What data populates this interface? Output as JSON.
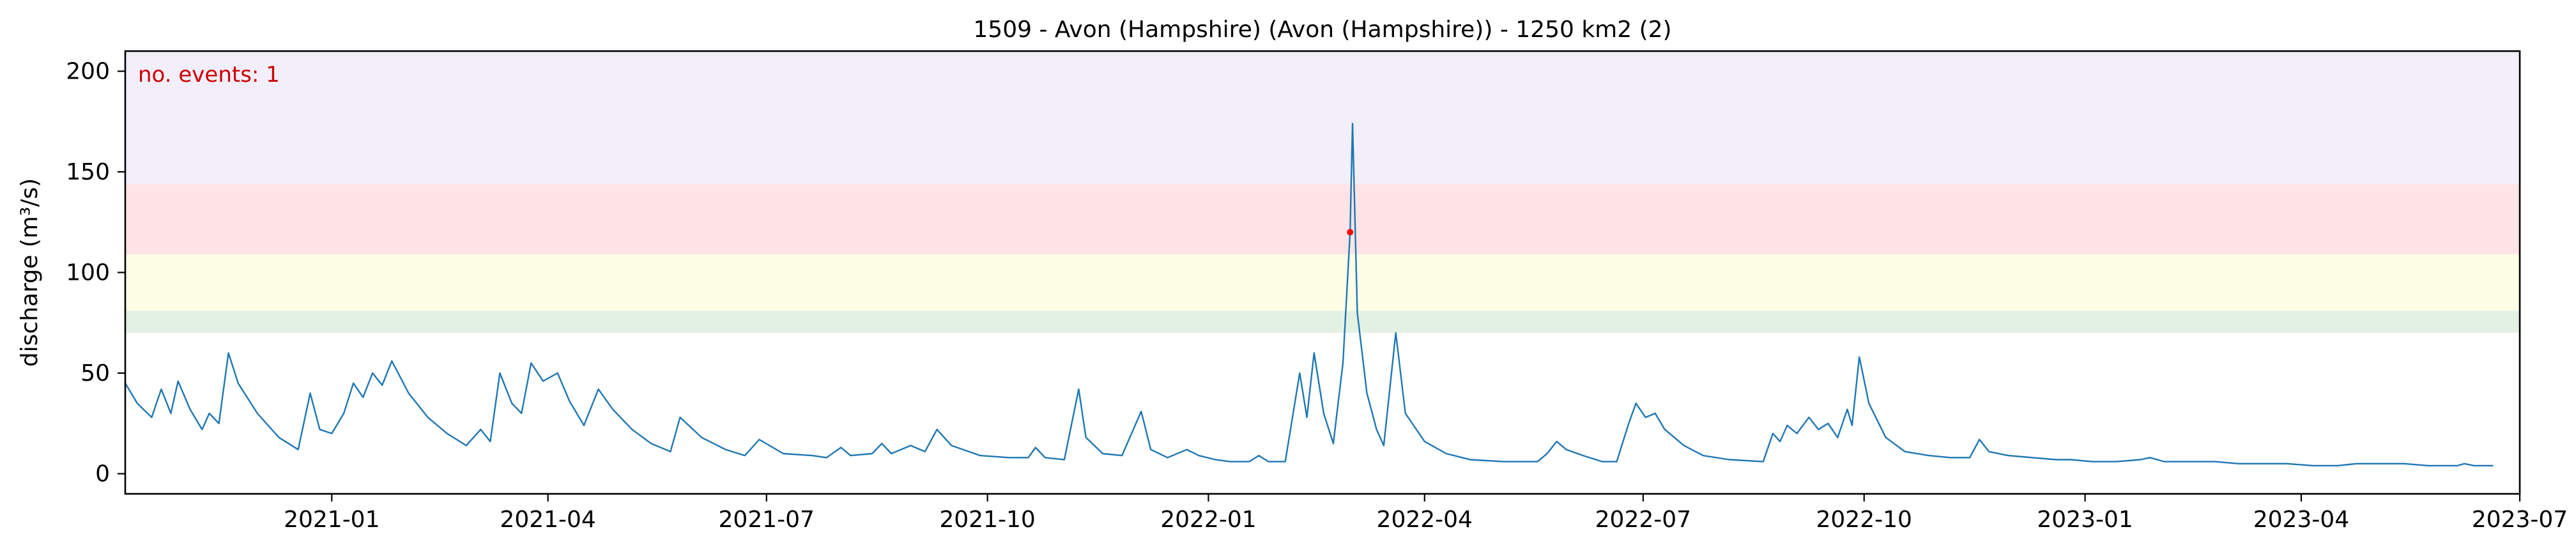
{
  "chart_data": {
    "type": "line",
    "title": "1509 - Avon (Hampshire) (Avon (Hampshire)) - 1250 km2 (2)",
    "xlabel": "",
    "ylabel": "discharge (m³/s)",
    "xlim": [
      "2020-10-07",
      "2023-07-01"
    ],
    "ylim": [
      -10,
      210
    ],
    "x_ticks": [
      "2021-01",
      "2021-04",
      "2021-07",
      "2021-10",
      "2022-01",
      "2022-04",
      "2022-07",
      "2022-10",
      "2023-01",
      "2023-04",
      "2023-07"
    ],
    "y_ticks": [
      0,
      50,
      100,
      150,
      200
    ],
    "grid": false,
    "annotation": "no. events: 1",
    "bands": [
      {
        "from": 70,
        "to": 81,
        "color": "#e3f1e3"
      },
      {
        "from": 81,
        "to": 109,
        "color": "#fefee6"
      },
      {
        "from": 109,
        "to": 144,
        "color": "#fee4e6"
      },
      {
        "from": 144,
        "to": 210,
        "color": "#f2eefa"
      }
    ],
    "series": [
      {
        "color": "#1f77b4",
        "points": [
          [
            "2020-10-07",
            45
          ],
          [
            "2020-10-12",
            35
          ],
          [
            "2020-10-18",
            28
          ],
          [
            "2020-10-22",
            42
          ],
          [
            "2020-10-26",
            30
          ],
          [
            "2020-10-29",
            46
          ],
          [
            "2020-11-03",
            32
          ],
          [
            "2020-11-08",
            22
          ],
          [
            "2020-11-11",
            30
          ],
          [
            "2020-11-15",
            25
          ],
          [
            "2020-11-19",
            60
          ],
          [
            "2020-11-23",
            45
          ],
          [
            "2020-12-01",
            30
          ],
          [
            "2020-12-10",
            18
          ],
          [
            "2020-12-18",
            12
          ],
          [
            "2020-12-23",
            40
          ],
          [
            "2020-12-27",
            22
          ],
          [
            "2021-01-01",
            20
          ],
          [
            "2021-01-06",
            30
          ],
          [
            "2021-01-10",
            45
          ],
          [
            "2021-01-14",
            38
          ],
          [
            "2021-01-18",
            50
          ],
          [
            "2021-01-22",
            44
          ],
          [
            "2021-01-26",
            56
          ],
          [
            "2021-02-02",
            40
          ],
          [
            "2021-02-10",
            28
          ],
          [
            "2021-02-18",
            20
          ],
          [
            "2021-02-26",
            14
          ],
          [
            "2021-03-04",
            22
          ],
          [
            "2021-03-08",
            16
          ],
          [
            "2021-03-12",
            50
          ],
          [
            "2021-03-17",
            35
          ],
          [
            "2021-03-21",
            30
          ],
          [
            "2021-03-25",
            55
          ],
          [
            "2021-03-30",
            46
          ],
          [
            "2021-04-05",
            50
          ],
          [
            "2021-04-10",
            36
          ],
          [
            "2021-04-16",
            24
          ],
          [
            "2021-04-22",
            42
          ],
          [
            "2021-04-28",
            32
          ],
          [
            "2021-05-06",
            22
          ],
          [
            "2021-05-14",
            15
          ],
          [
            "2021-05-22",
            11
          ],
          [
            "2021-05-26",
            28
          ],
          [
            "2021-06-04",
            18
          ],
          [
            "2021-06-14",
            12
          ],
          [
            "2021-06-22",
            9
          ],
          [
            "2021-06-28",
            17
          ],
          [
            "2021-07-08",
            10
          ],
          [
            "2021-07-20",
            9
          ],
          [
            "2021-07-26",
            8
          ],
          [
            "2021-08-01",
            13
          ],
          [
            "2021-08-05",
            9
          ],
          [
            "2021-08-14",
            10
          ],
          [
            "2021-08-18",
            15
          ],
          [
            "2021-08-22",
            10
          ],
          [
            "2021-08-30",
            14
          ],
          [
            "2021-09-05",
            11
          ],
          [
            "2021-09-10",
            22
          ],
          [
            "2021-09-16",
            14
          ],
          [
            "2021-09-28",
            9
          ],
          [
            "2021-10-10",
            8
          ],
          [
            "2021-10-18",
            8
          ],
          [
            "2021-10-21",
            13
          ],
          [
            "2021-10-25",
            8
          ],
          [
            "2021-11-02",
            7
          ],
          [
            "2021-11-08",
            42
          ],
          [
            "2021-11-11",
            18
          ],
          [
            "2021-11-18",
            10
          ],
          [
            "2021-11-26",
            9
          ],
          [
            "2021-12-04",
            31
          ],
          [
            "2021-12-08",
            12
          ],
          [
            "2021-12-15",
            8
          ],
          [
            "2021-12-23",
            12
          ],
          [
            "2021-12-28",
            9
          ],
          [
            "2022-01-04",
            7
          ],
          [
            "2022-01-10",
            6
          ],
          [
            "2022-01-18",
            6
          ],
          [
            "2022-01-22",
            9
          ],
          [
            "2022-01-26",
            6
          ],
          [
            "2022-02-02",
            6
          ],
          [
            "2022-02-08",
            50
          ],
          [
            "2022-02-11",
            28
          ],
          [
            "2022-02-14",
            60
          ],
          [
            "2022-02-18",
            30
          ],
          [
            "2022-02-22",
            15
          ],
          [
            "2022-02-26",
            55
          ],
          [
            "2022-03-01",
            120
          ],
          [
            "2022-03-02",
            174
          ],
          [
            "2022-03-04",
            80
          ],
          [
            "2022-03-08",
            40
          ],
          [
            "2022-03-12",
            22
          ],
          [
            "2022-03-15",
            14
          ],
          [
            "2022-03-20",
            70
          ],
          [
            "2022-03-24",
            30
          ],
          [
            "2022-04-01",
            16
          ],
          [
            "2022-04-10",
            10
          ],
          [
            "2022-04-20",
            7
          ],
          [
            "2022-05-04",
            6
          ],
          [
            "2022-05-18",
            6
          ],
          [
            "2022-05-22",
            10
          ],
          [
            "2022-05-26",
            16
          ],
          [
            "2022-05-30",
            12
          ],
          [
            "2022-06-06",
            9
          ],
          [
            "2022-06-14",
            6
          ],
          [
            "2022-06-20",
            6
          ],
          [
            "2022-06-25",
            25
          ],
          [
            "2022-06-28",
            35
          ],
          [
            "2022-07-02",
            28
          ],
          [
            "2022-07-06",
            30
          ],
          [
            "2022-07-10",
            22
          ],
          [
            "2022-07-18",
            14
          ],
          [
            "2022-07-26",
            9
          ],
          [
            "2022-08-06",
            7
          ],
          [
            "2022-08-20",
            6
          ],
          [
            "2022-08-24",
            20
          ],
          [
            "2022-08-27",
            16
          ],
          [
            "2022-08-30",
            24
          ],
          [
            "2022-09-03",
            20
          ],
          [
            "2022-09-08",
            28
          ],
          [
            "2022-09-12",
            22
          ],
          [
            "2022-09-16",
            25
          ],
          [
            "2022-09-20",
            18
          ],
          [
            "2022-09-24",
            32
          ],
          [
            "2022-09-26",
            24
          ],
          [
            "2022-09-29",
            58
          ],
          [
            "2022-10-03",
            35
          ],
          [
            "2022-10-10",
            18
          ],
          [
            "2022-10-18",
            11
          ],
          [
            "2022-10-28",
            9
          ],
          [
            "2022-11-06",
            8
          ],
          [
            "2022-11-14",
            8
          ],
          [
            "2022-11-18",
            17
          ],
          [
            "2022-11-22",
            11
          ],
          [
            "2022-11-30",
            9
          ],
          [
            "2022-12-10",
            8
          ],
          [
            "2022-12-20",
            7
          ],
          [
            "2022-12-26",
            7
          ],
          [
            "2023-01-04",
            6
          ],
          [
            "2023-01-14",
            6
          ],
          [
            "2023-01-24",
            7
          ],
          [
            "2023-01-28",
            8
          ],
          [
            "2023-02-03",
            6
          ],
          [
            "2023-02-14",
            6
          ],
          [
            "2023-02-24",
            6
          ],
          [
            "2023-03-06",
            5
          ],
          [
            "2023-03-16",
            5
          ],
          [
            "2023-03-26",
            5
          ],
          [
            "2023-04-06",
            4
          ],
          [
            "2023-04-16",
            4
          ],
          [
            "2023-04-24",
            5
          ],
          [
            "2023-05-04",
            5
          ],
          [
            "2023-05-14",
            5
          ],
          [
            "2023-05-24",
            4
          ],
          [
            "2023-06-01",
            4
          ],
          [
            "2023-06-05",
            4
          ],
          [
            "2023-06-08",
            5
          ],
          [
            "2023-06-12",
            4
          ],
          [
            "2023-06-20",
            4
          ]
        ]
      }
    ],
    "event_points": [
      {
        "x": "2022-03-01",
        "y": 120,
        "color": "#ff0000"
      }
    ]
  },
  "annotation_color": "#cc0000"
}
